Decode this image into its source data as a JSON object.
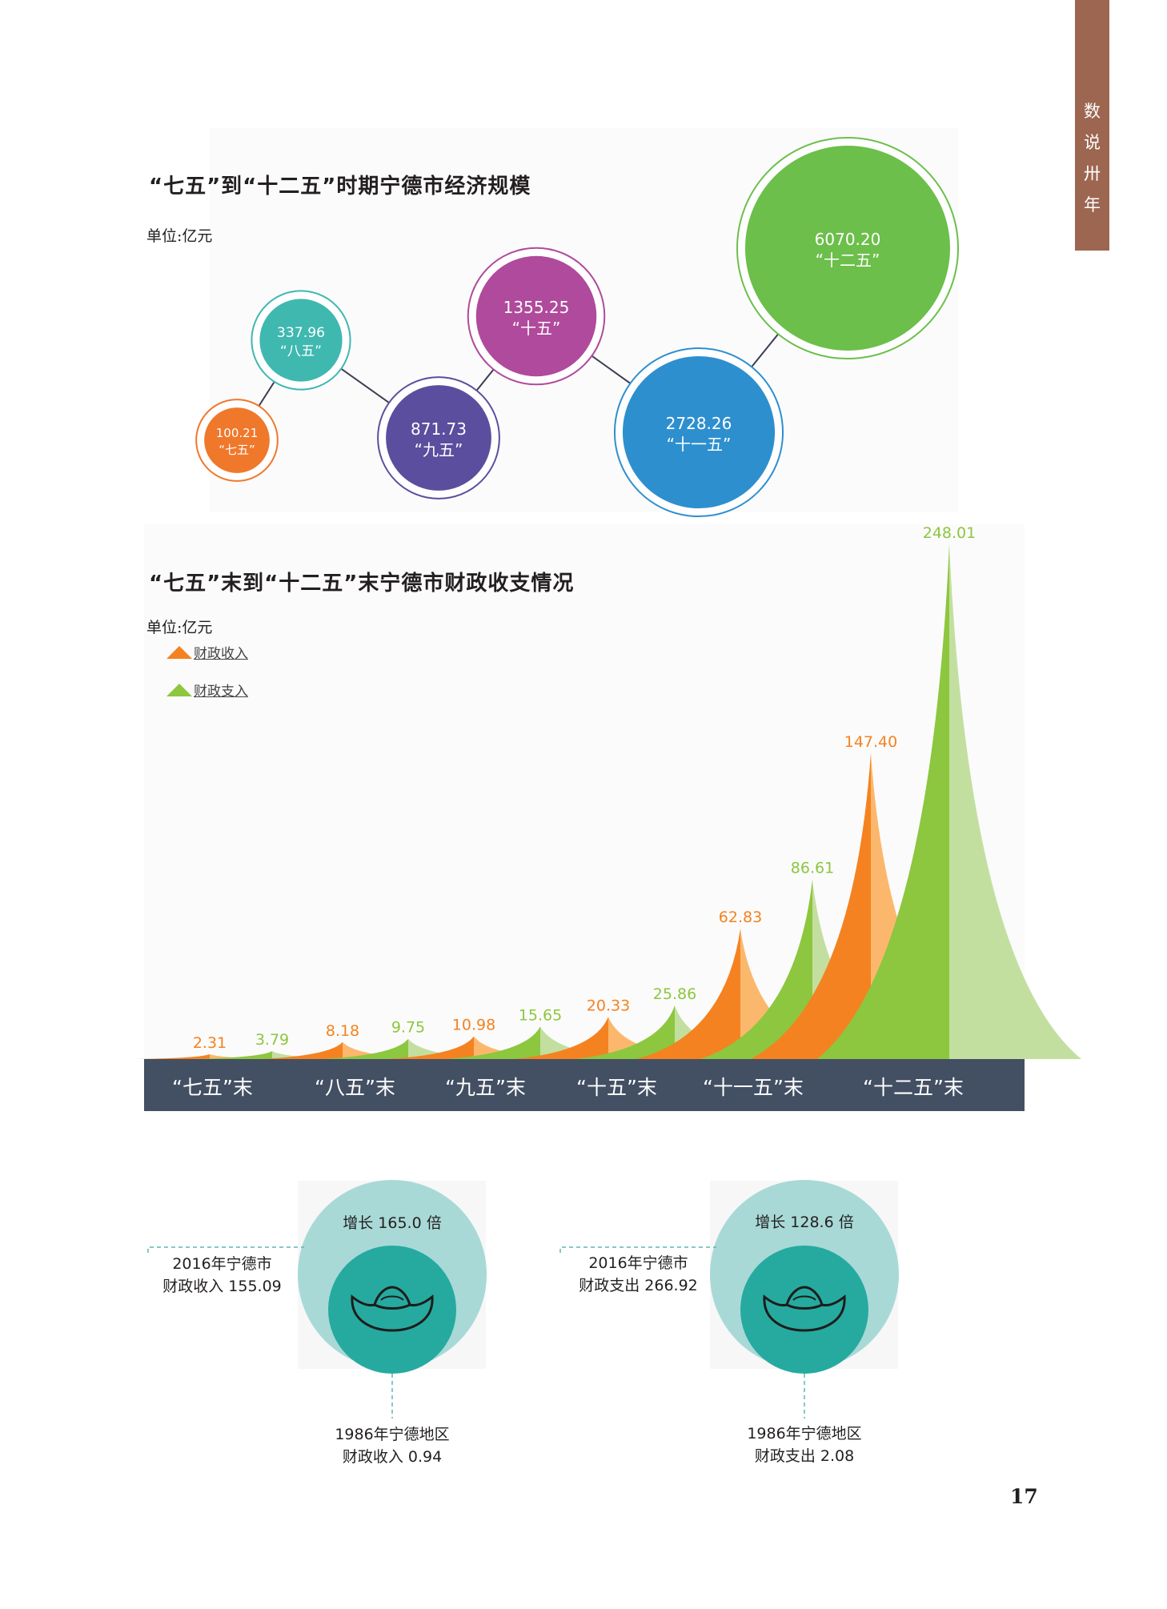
{
  "side_tab": {
    "chars": [
      "数",
      "说",
      "卅",
      "年"
    ]
  },
  "page_number": "17",
  "colors": {
    "revenue": "#f58220",
    "revenue_light": "#fbb86d",
    "expenditure": "#8dc63f",
    "expenditure_light": "#c3dfa0",
    "category_bar": "#434f63",
    "teal_outer": "#a8d9d6",
    "teal_inner": "#26aaa0"
  },
  "chart_data": [
    {
      "type": "scatter",
      "title": "“七五”到“十二五”时期宁德市经济规模",
      "unit": "单位:亿元",
      "categories": [
        "“七五”",
        "“八五”",
        "“九五”",
        "“十五”",
        "“十一五”",
        "“十二五”"
      ],
      "values": [
        100.21,
        337.96,
        871.73,
        1355.25,
        2728.26,
        6070.2
      ],
      "value_labels": [
        "100.21",
        "337.96",
        "871.73",
        "1355.25",
        "2728.26",
        "6070.20"
      ],
      "bubble_colors": [
        "#f0782b",
        "#3fb8b0",
        "#5b4e9e",
        "#b04a9c",
        "#2e8fcf",
        "#6cbf4a"
      ]
    },
    {
      "type": "area",
      "title": "“七五”末到“十二五”末宁德市财政收支情况",
      "unit": "单位:亿元",
      "legend": [
        "财政收入",
        "财政支入"
      ],
      "categories": [
        "“七五”末",
        "“八五”末",
        "“九五”末",
        "“十五”末",
        "“十一五”末",
        "“十二五”末"
      ],
      "series": [
        {
          "name": "财政收入",
          "values": [
            2.31,
            8.18,
            10.98,
            20.33,
            62.83,
            147.4
          ],
          "labels": [
            "2.31",
            "8.18",
            "10.98",
            "20.33",
            "62.83",
            "147.40"
          ]
        },
        {
          "name": "财政支入",
          "values": [
            3.79,
            9.75,
            15.65,
            25.86,
            86.61,
            248.01
          ],
          "labels": [
            "3.79",
            "9.75",
            "15.65",
            "25.86",
            "86.61",
            "248.01"
          ]
        }
      ],
      "ylim": [
        0,
        248.01
      ]
    }
  ],
  "comparisons": [
    {
      "growth": "增长 165.0 倍",
      "current": [
        "2016年宁德市",
        "财政收入 155.09"
      ],
      "baseline": [
        "1986年宁德地区",
        "财政收入 0.94"
      ]
    },
    {
      "growth": "增长 128.6 倍",
      "current": [
        "2016年宁德市",
        "财政支出 266.92"
      ],
      "baseline": [
        "1986年宁德地区",
        "财政支出 2.08"
      ]
    }
  ]
}
